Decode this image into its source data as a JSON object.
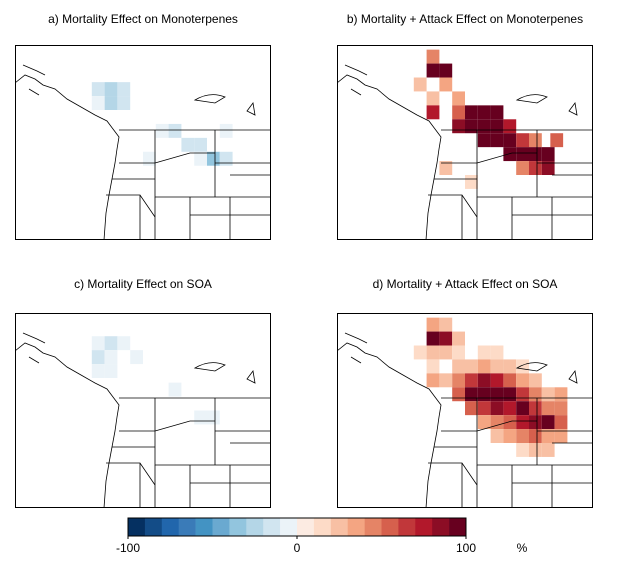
{
  "chart_data": [
    {
      "type": "map",
      "title": "a) Mortality Effect on Monoterpenes",
      "xlim": [
        -130,
        -100
      ],
      "ylim": [
        34,
        55
      ],
      "cells": [
        [
          -121,
          49.5,
          -15
        ],
        [
          -119.5,
          49.5,
          -25
        ],
        [
          -118,
          49.5,
          -15
        ],
        [
          -119.5,
          48,
          -30
        ],
        [
          -118,
          48,
          -20
        ],
        [
          -121,
          48,
          -10
        ],
        [
          -113.5,
          45,
          -10
        ],
        [
          -112,
          45,
          -15
        ],
        [
          -110.5,
          43.5,
          -20
        ],
        [
          -109,
          43.5,
          -15
        ],
        [
          -107.5,
          42,
          -35
        ],
        [
          -106,
          42,
          -15
        ],
        [
          -109,
          42,
          -10
        ],
        [
          -115,
          42,
          -10
        ],
        [
          -106,
          45,
          -10
        ]
      ]
    },
    {
      "type": "map",
      "title": "b) Mortality + Attack Effect on Monoterpenes",
      "xlim": [
        -130,
        -100
      ],
      "ylim": [
        34,
        55
      ],
      "cells": [
        [
          -119.5,
          53,
          40
        ],
        [
          -119.5,
          51.5,
          100
        ],
        [
          -118,
          51.5,
          90
        ],
        [
          -121,
          50,
          20
        ],
        [
          -118,
          50,
          30
        ],
        [
          -119.5,
          48.5,
          20
        ],
        [
          -116.5,
          48.5,
          30
        ],
        [
          -119.5,
          47,
          70
        ],
        [
          -116.5,
          47,
          50
        ],
        [
          -115,
          47,
          90
        ],
        [
          -113.5,
          47,
          100
        ],
        [
          -112,
          47,
          100
        ],
        [
          -115,
          45.5,
          100
        ],
        [
          -113.5,
          45.5,
          100
        ],
        [
          -112,
          45.5,
          100
        ],
        [
          -110.5,
          45.5,
          70
        ],
        [
          -116.5,
          45.5,
          80
        ],
        [
          -113.5,
          44,
          90
        ],
        [
          -112,
          44,
          100
        ],
        [
          -110.5,
          44,
          100
        ],
        [
          -109,
          44,
          60
        ],
        [
          -107.5,
          44,
          40
        ],
        [
          -105,
          44,
          50
        ],
        [
          -110.5,
          42.5,
          90
        ],
        [
          -109,
          42.5,
          100
        ],
        [
          -107.5,
          42.5,
          100
        ],
        [
          -106,
          42.5,
          90
        ],
        [
          -109,
          41,
          40
        ],
        [
          -107.5,
          41,
          60
        ],
        [
          -106,
          41,
          80
        ],
        [
          -118,
          41,
          20
        ],
        [
          -115,
          39.5,
          10
        ]
      ]
    },
    {
      "type": "map",
      "title": "c) Mortality Effect on SOA",
      "xlim": [
        -130,
        -100
      ],
      "ylim": [
        34,
        55
      ],
      "cells": [
        [
          -121,
          51,
          -10
        ],
        [
          -119.5,
          51,
          -15
        ],
        [
          -118,
          51,
          -10
        ],
        [
          -121,
          49.5,
          -15
        ],
        [
          -119.5,
          49.5,
          -10
        ],
        [
          -116.5,
          49.5,
          -10
        ],
        [
          -121,
          48,
          -10
        ],
        [
          -119.5,
          48,
          -10
        ],
        [
          -112,
          46,
          -10
        ],
        [
          -109,
          43,
          -10
        ],
        [
          -107.5,
          43,
          -10
        ]
      ]
    },
    {
      "type": "map",
      "title": "d) Mortality + Attack Effect on SOA",
      "xlim": [
        -130,
        -100
      ],
      "ylim": [
        34,
        55
      ],
      "cells": [
        [
          -119.5,
          53,
          30
        ],
        [
          -118,
          53,
          20
        ],
        [
          -119.5,
          51.5,
          90
        ],
        [
          -118,
          51.5,
          80
        ],
        [
          -116.5,
          51.5,
          20
        ],
        [
          -121,
          50,
          10
        ],
        [
          -119.5,
          50,
          20
        ],
        [
          -118,
          50,
          20
        ],
        [
          -116.5,
          50,
          10
        ],
        [
          -113.5,
          50,
          10
        ],
        [
          -112,
          50,
          10
        ],
        [
          -119.5,
          48.5,
          10
        ],
        [
          -116.5,
          48.5,
          20
        ],
        [
          -115,
          48.5,
          20
        ],
        [
          -113.5,
          48.5,
          30
        ],
        [
          -112,
          48.5,
          20
        ],
        [
          -110.5,
          48.5,
          20
        ],
        [
          -109,
          48.5,
          10
        ],
        [
          -119.5,
          47,
          30
        ],
        [
          -118,
          47,
          20
        ],
        [
          -116.5,
          47,
          40
        ],
        [
          -115,
          47,
          60
        ],
        [
          -113.5,
          47,
          80
        ],
        [
          -112,
          47,
          70
        ],
        [
          -110.5,
          47,
          50
        ],
        [
          -109,
          47,
          30
        ],
        [
          -107.5,
          47,
          20
        ],
        [
          -116.5,
          45.5,
          50
        ],
        [
          -115,
          45.5,
          100
        ],
        [
          -113.5,
          45.5,
          100
        ],
        [
          -112,
          45.5,
          100
        ],
        [
          -110.5,
          45.5,
          90
        ],
        [
          -109,
          45.5,
          60
        ],
        [
          -107.5,
          45.5,
          40
        ],
        [
          -106,
          45.5,
          20
        ],
        [
          -104.5,
          45.5,
          30
        ],
        [
          -115,
          44,
          50
        ],
        [
          -113.5,
          44,
          60
        ],
        [
          -112,
          44,
          80
        ],
        [
          -110.5,
          44,
          70
        ],
        [
          -109,
          44,
          90
        ],
        [
          -107.5,
          44,
          60
        ],
        [
          -106,
          44,
          40
        ],
        [
          -104.5,
          44,
          40
        ],
        [
          -113.5,
          42.5,
          30
        ],
        [
          -112,
          42.5,
          40
        ],
        [
          -110.5,
          42.5,
          50
        ],
        [
          -109,
          42.5,
          70
        ],
        [
          -107.5,
          42.5,
          80
        ],
        [
          -106,
          42.5,
          100
        ],
        [
          -104.5,
          42.5,
          50
        ],
        [
          -112,
          41,
          20
        ],
        [
          -110.5,
          41,
          30
        ],
        [
          -109,
          41,
          40
        ],
        [
          -107.5,
          41,
          50
        ],
        [
          -106,
          41,
          30
        ],
        [
          -104.5,
          41,
          30
        ],
        [
          -109,
          39.5,
          10
        ],
        [
          -107.5,
          39.5,
          20
        ],
        [
          -106,
          39.5,
          20
        ]
      ]
    }
  ],
  "colorbar": {
    "clim": [
      -100,
      100
    ],
    "ticks": [
      -100,
      0,
      100
    ],
    "unit": "%",
    "colors": [
      "#053061",
      "#134c87",
      "#2166ac",
      "#3a7bb8",
      "#4393c3",
      "#6aa9d0",
      "#92c5de",
      "#b4d6e7",
      "#d1e5f0",
      "#ebf3f8",
      "#fcebe2",
      "#fddbc7",
      "#f8c0a4",
      "#f4a582",
      "#e58466",
      "#d6604d",
      "#c1373a",
      "#b2182b",
      "#8c0d25",
      "#67001f"
    ]
  }
}
